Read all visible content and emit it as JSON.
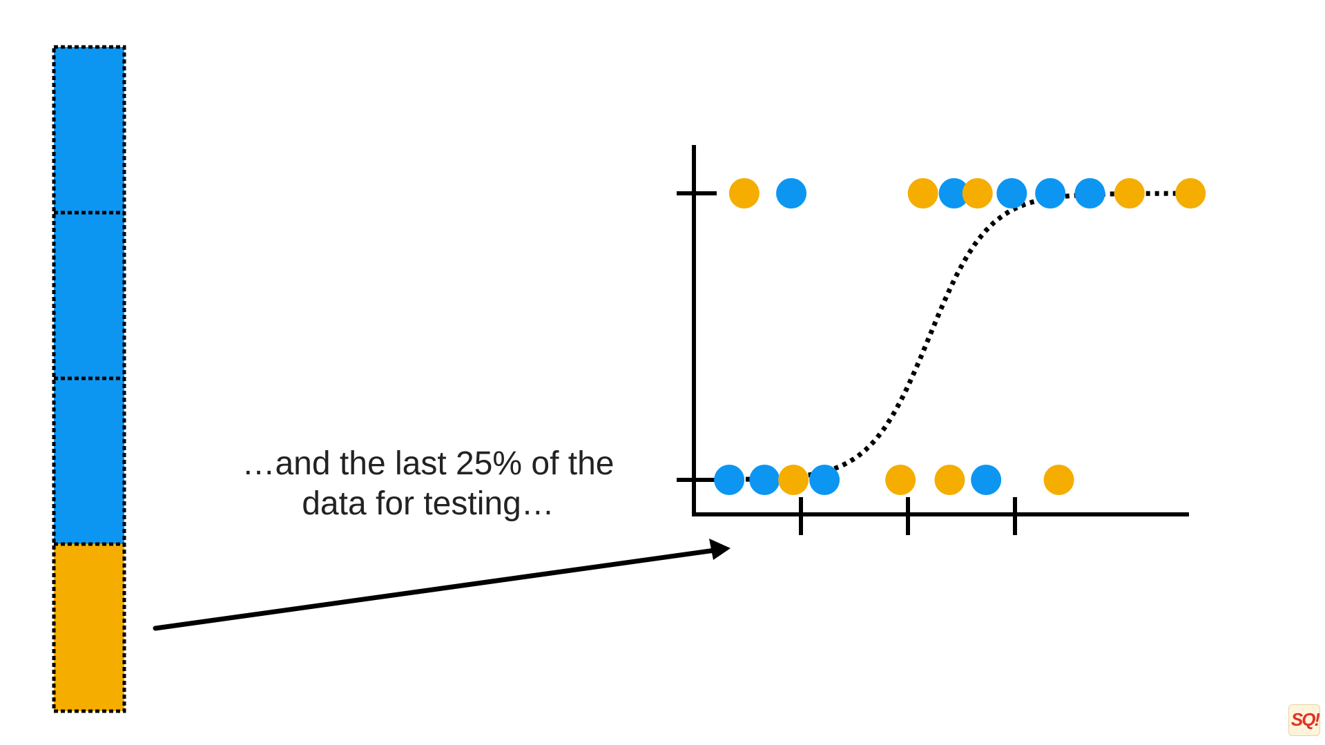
{
  "caption": {
    "line1": "…and the last 25% of the",
    "line2": "data for testing…"
  },
  "logo": {
    "text": "SQ!"
  },
  "colors": {
    "blue": "#0c96f2",
    "orange": "#f5ad00",
    "black": "#000000"
  },
  "data_bar": {
    "segments": [
      {
        "color": "blue"
      },
      {
        "color": "blue"
      },
      {
        "color": "blue"
      },
      {
        "color": "orange"
      }
    ]
  },
  "chart_data": {
    "type": "scatter",
    "title": "",
    "xlabel": "",
    "ylabel": "",
    "xlim": [
      0,
      5.2
    ],
    "ylim": [
      0,
      1.15
    ],
    "x_ticks": [
      1,
      2,
      3
    ],
    "y_ticks": [
      0,
      1
    ],
    "points": [
      {
        "x": 0.47,
        "y": 1,
        "color": "orange"
      },
      {
        "x": 0.91,
        "y": 1,
        "color": "blue"
      },
      {
        "x": 2.14,
        "y": 1,
        "color": "orange"
      },
      {
        "x": 2.43,
        "y": 1,
        "color": "blue"
      },
      {
        "x": 2.65,
        "y": 1,
        "color": "orange"
      },
      {
        "x": 2.97,
        "y": 1,
        "color": "blue"
      },
      {
        "x": 3.33,
        "y": 1,
        "color": "blue"
      },
      {
        "x": 3.7,
        "y": 1,
        "color": "blue"
      },
      {
        "x": 4.07,
        "y": 1,
        "color": "orange"
      },
      {
        "x": 4.64,
        "y": 1,
        "color": "orange"
      },
      {
        "x": 0.33,
        "y": 0,
        "color": "blue"
      },
      {
        "x": 0.66,
        "y": 0,
        "color": "blue"
      },
      {
        "x": 0.93,
        "y": 0,
        "color": "orange"
      },
      {
        "x": 1.22,
        "y": 0,
        "color": "blue"
      },
      {
        "x": 1.93,
        "y": 0,
        "color": "orange"
      },
      {
        "x": 2.39,
        "y": 0,
        "color": "orange"
      },
      {
        "x": 2.73,
        "y": 0,
        "color": "blue"
      },
      {
        "x": 3.41,
        "y": 0,
        "color": "orange"
      }
    ],
    "curve": {
      "type": "logistic",
      "midpoint": 2.2,
      "steepness": 3.6,
      "x_range": [
        0.4,
        4.64
      ]
    }
  }
}
